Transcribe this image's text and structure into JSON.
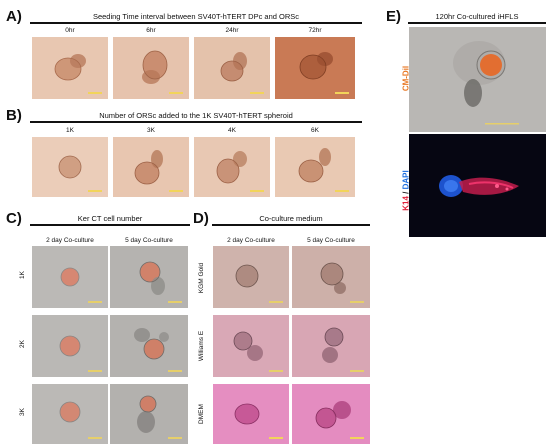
{
  "panel_a": {
    "letter": "A)",
    "title": "Seeding Time interval between SV40T-hTERT DPc and ORSc",
    "columns": [
      "0hr",
      "6hr",
      "24hr",
      "72hr"
    ]
  },
  "panel_b": {
    "letter": "B)",
    "title": "Number of ORSc added to the 1K SV40T-hTERT spheroid",
    "columns": [
      "1K",
      "3K",
      "4K",
      "6K"
    ]
  },
  "panel_c": {
    "letter": "C)",
    "title": "Ker CT cell number",
    "columns": [
      "2 day Co-culture",
      "5 day Co-culture"
    ],
    "rows": [
      "1K",
      "2K",
      "3K"
    ]
  },
  "panel_d": {
    "letter": "D)",
    "title": "Co-culture medium",
    "columns": [
      "2 day Co-culture",
      "5 day Co-culture"
    ],
    "rows": [
      "KGM Gold",
      "Williams E",
      "DMEM"
    ]
  },
  "panel_e": {
    "letter": "E)",
    "title": "120hr Co-cultured iHFLS",
    "top_label": "CM-DiI",
    "bottom_label_k14": "K14",
    "bottom_label_sep": " / ",
    "bottom_label_dapi": "DAPI"
  },
  "colors": {
    "bright_field_a": "#e6c4ae",
    "bright_field_72": "#c97a55",
    "grey_field": "#b8b6b3",
    "kgm_field": "#cdb1aa",
    "williams_field": "#d9a7b6",
    "dmem_field": "#e38cc0",
    "fluor_bg": "#060612",
    "cmdil_orange": "#e87722",
    "k14_red": "#e0203a",
    "dapi_blue": "#1f6fe0"
  }
}
